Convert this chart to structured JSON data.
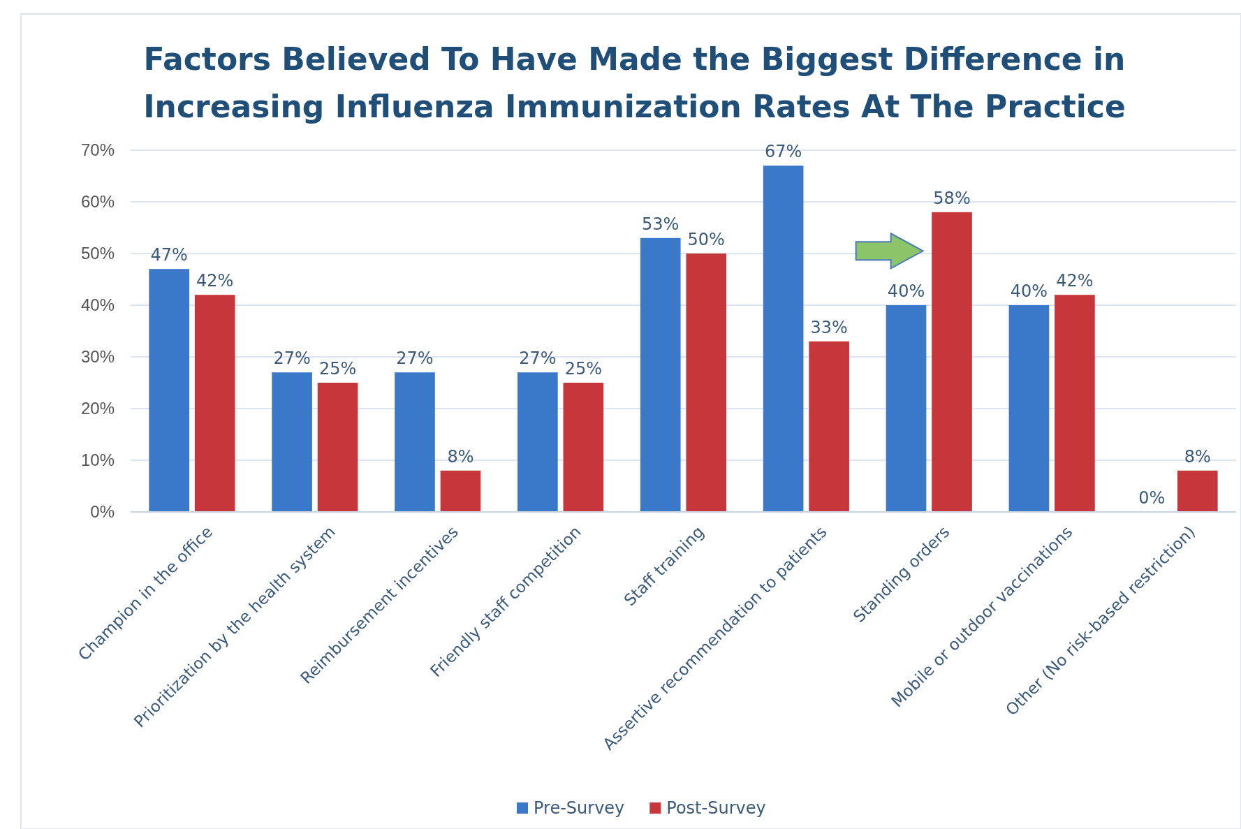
{
  "chart_data": {
    "type": "bar",
    "title": "Factors Believed To Have Made the Biggest Difference in Increasing Influenza Immunization Rates At The Practice",
    "categories": [
      "Champion in the office",
      "Prioritization by the health system",
      "Reimbursement incentives",
      "Friendly staff competition",
      "Staff training",
      "Assertive recommendation to patients",
      "Standing orders",
      "Mobile or outdoor vaccinations",
      "Other (No risk-based restriction)"
    ],
    "series": [
      {
        "name": "Pre-Survey",
        "color": "#3a78c9",
        "values": [
          47,
          27,
          27,
          27,
          53,
          67,
          40,
          40,
          0
        ],
        "value_labels": [
          "47%",
          "27%",
          "27%",
          "27%",
          "53%",
          "67%",
          "40%",
          "40%",
          "0%"
        ]
      },
      {
        "name": "Post-Survey",
        "color": "#c6363a",
        "values": [
          42,
          25,
          8,
          25,
          50,
          33,
          58,
          42,
          8
        ],
        "value_labels": [
          "42%",
          "25%",
          "8%",
          "25%",
          "50%",
          "33%",
          "58%",
          "42%",
          "8%"
        ]
      }
    ],
    "ylim": [
      0,
      70
    ],
    "yticks": [
      {
        "value": 0,
        "label": "0%"
      },
      {
        "value": 10,
        "label": "10%"
      },
      {
        "value": 20,
        "label": "20%"
      },
      {
        "value": 30,
        "label": "30%"
      },
      {
        "value": 40,
        "label": "40%"
      },
      {
        "value": 50,
        "label": "50%"
      },
      {
        "value": 60,
        "label": "60%"
      },
      {
        "value": 70,
        "label": "70%"
      }
    ],
    "grid": "y",
    "legend": "bottom"
  }
}
